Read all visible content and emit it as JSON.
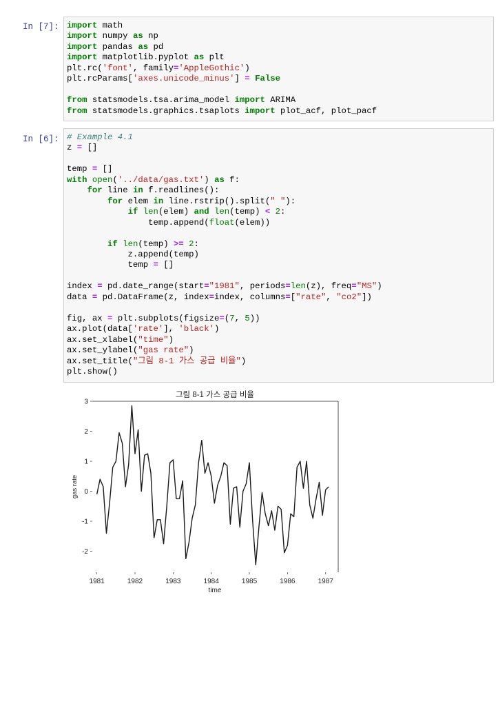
{
  "cells": [
    {
      "prompt": "In [7]:",
      "lines": [
        [
          [
            "kw",
            "import"
          ],
          [
            "nf",
            " math"
          ]
        ],
        [
          [
            "kw",
            "import"
          ],
          [
            "nf",
            " numpy "
          ],
          [
            "kw",
            "as"
          ],
          [
            "nf",
            " np"
          ]
        ],
        [
          [
            "kw",
            "import"
          ],
          [
            "nf",
            " pandas "
          ],
          [
            "kw",
            "as"
          ],
          [
            "nf",
            " pd"
          ]
        ],
        [
          [
            "kw",
            "import"
          ],
          [
            "nf",
            " matplotlib.pyplot "
          ],
          [
            "kw",
            "as"
          ],
          [
            "nf",
            " plt"
          ]
        ],
        [
          [
            "nf",
            "plt.rc("
          ],
          [
            "str",
            "'font'"
          ],
          [
            "nf",
            ", family"
          ],
          [
            "op",
            "="
          ],
          [
            "str",
            "'AppleGothic'"
          ],
          [
            "nf",
            ")"
          ]
        ],
        [
          [
            "nf",
            "plt.rcParams["
          ],
          [
            "str",
            "'axes.unicode_minus'"
          ],
          [
            "nf",
            "] "
          ],
          [
            "op",
            "="
          ],
          [
            "nf",
            " "
          ],
          [
            "kc",
            "False"
          ]
        ],
        [],
        [
          [
            "kw",
            "from"
          ],
          [
            "nf",
            " statsmodels.tsa.arima_model "
          ],
          [
            "kw",
            "import"
          ],
          [
            "nf",
            " ARIMA"
          ]
        ],
        [
          [
            "kw",
            "from"
          ],
          [
            "nf",
            " statsmodels.graphics.tsaplots "
          ],
          [
            "kw",
            "import"
          ],
          [
            "nf",
            " plot_acf, plot_pacf"
          ]
        ]
      ]
    },
    {
      "prompt": "In [6]:",
      "lines": [
        [
          [
            "cm",
            "# Example 4.1"
          ]
        ],
        [
          [
            "nf",
            "z "
          ],
          [
            "op",
            "="
          ],
          [
            "nf",
            " []"
          ]
        ],
        [],
        [
          [
            "nf",
            "temp "
          ],
          [
            "op",
            "="
          ],
          [
            "nf",
            " []"
          ]
        ],
        [
          [
            "kw",
            "with"
          ],
          [
            "nf",
            " "
          ],
          [
            "bi",
            "open"
          ],
          [
            "nf",
            "("
          ],
          [
            "str",
            "'../data/gas.txt'"
          ],
          [
            "nf",
            ") "
          ],
          [
            "kw",
            "as"
          ],
          [
            "nf",
            " f:"
          ]
        ],
        [
          [
            "nf",
            "    "
          ],
          [
            "kw",
            "for"
          ],
          [
            "nf",
            " line "
          ],
          [
            "kw",
            "in"
          ],
          [
            "nf",
            " f.readlines():"
          ]
        ],
        [
          [
            "nf",
            "        "
          ],
          [
            "kw",
            "for"
          ],
          [
            "nf",
            " elem "
          ],
          [
            "kw",
            "in"
          ],
          [
            "nf",
            " line.rstrip().split("
          ],
          [
            "str",
            "\" \""
          ],
          [
            "nf",
            "):"
          ]
        ],
        [
          [
            "nf",
            "            "
          ],
          [
            "kw",
            "if"
          ],
          [
            "nf",
            " "
          ],
          [
            "bi",
            "len"
          ],
          [
            "nf",
            "(elem) "
          ],
          [
            "kw",
            "and"
          ],
          [
            "nf",
            " "
          ],
          [
            "bi",
            "len"
          ],
          [
            "nf",
            "(temp) "
          ],
          [
            "op",
            "<"
          ],
          [
            "nf",
            " "
          ],
          [
            "num",
            "2"
          ],
          [
            "nf",
            ":"
          ]
        ],
        [
          [
            "nf",
            "                temp.append("
          ],
          [
            "bi",
            "float"
          ],
          [
            "nf",
            "(elem))"
          ]
        ],
        [],
        [
          [
            "nf",
            "        "
          ],
          [
            "kw",
            "if"
          ],
          [
            "nf",
            " "
          ],
          [
            "bi",
            "len"
          ],
          [
            "nf",
            "(temp) "
          ],
          [
            "op",
            ">="
          ],
          [
            "nf",
            " "
          ],
          [
            "num",
            "2"
          ],
          [
            "nf",
            ":"
          ]
        ],
        [
          [
            "nf",
            "            z.append(temp)"
          ]
        ],
        [
          [
            "nf",
            "            temp "
          ],
          [
            "op",
            "="
          ],
          [
            "nf",
            " []"
          ]
        ],
        [],
        [
          [
            "nf",
            "index "
          ],
          [
            "op",
            "="
          ],
          [
            "nf",
            " pd.date_range(start"
          ],
          [
            "op",
            "="
          ],
          [
            "str",
            "\"1981\""
          ],
          [
            "nf",
            ", periods"
          ],
          [
            "op",
            "="
          ],
          [
            "bi",
            "len"
          ],
          [
            "nf",
            "(z), freq"
          ],
          [
            "op",
            "="
          ],
          [
            "str",
            "\"MS\""
          ],
          [
            "nf",
            ")"
          ]
        ],
        [
          [
            "nf",
            "data "
          ],
          [
            "op",
            "="
          ],
          [
            "nf",
            " pd.DataFrame(z, index"
          ],
          [
            "op",
            "="
          ],
          [
            "nf",
            "index, columns"
          ],
          [
            "op",
            "="
          ],
          [
            "nf",
            "["
          ],
          [
            "str",
            "\"rate\""
          ],
          [
            "nf",
            ", "
          ],
          [
            "str",
            "\"co2\""
          ],
          [
            "nf",
            "])"
          ]
        ],
        [],
        [
          [
            "nf",
            "fig, ax "
          ],
          [
            "op",
            "="
          ],
          [
            "nf",
            " plt.subplots(figsize"
          ],
          [
            "op",
            "="
          ],
          [
            "nf",
            "("
          ],
          [
            "num",
            "7"
          ],
          [
            "nf",
            ", "
          ],
          [
            "num",
            "5"
          ],
          [
            "nf",
            "))"
          ]
        ],
        [
          [
            "nf",
            "ax.plot(data["
          ],
          [
            "str",
            "'rate'"
          ],
          [
            "nf",
            "], "
          ],
          [
            "str",
            "'black'"
          ],
          [
            "nf",
            ")"
          ]
        ],
        [
          [
            "nf",
            "ax.set_xlabel("
          ],
          [
            "str",
            "\"time\""
          ],
          [
            "nf",
            ")"
          ]
        ],
        [
          [
            "nf",
            "ax.set_ylabel("
          ],
          [
            "str",
            "\"gas rate\""
          ],
          [
            "nf",
            ")"
          ]
        ],
        [
          [
            "nf",
            "ax.set_title("
          ],
          [
            "str",
            "\"그림 8-1 가스 공급 비율\""
          ],
          [
            "nf",
            ")"
          ]
        ],
        [
          [
            "nf",
            "plt.show()"
          ]
        ]
      ]
    }
  ],
  "chart_data": {
    "type": "line",
    "title": "그림 8-1 가스 공급 비율",
    "xlabel": "time",
    "ylabel": "gas rate",
    "xlim": [
      1980.88,
      1987.33
    ],
    "ylim": [
      -2.7,
      3.0
    ],
    "yticks": [
      3,
      2,
      1,
      0,
      -1,
      -2
    ],
    "ytick_labels": [
      "3",
      "2",
      "1",
      "0",
      "-1",
      "-2"
    ],
    "xticks": [
      1981,
      1982,
      1983,
      1984,
      1985,
      1986,
      1987
    ],
    "xtick_labels": [
      "1981",
      "1982",
      "1983",
      "1984",
      "1985",
      "1986",
      "1987"
    ],
    "line_color": "#1a1a1a",
    "series": [
      {
        "values": [
          -0.1,
          0.4,
          0.15,
          -1.4,
          -0.4,
          0.8,
          1.0,
          1.95,
          1.6,
          0.15,
          0.9,
          2.85,
          1.25,
          2.05,
          0.0,
          1.2,
          1.25,
          0.6,
          -1.55,
          -0.95,
          -0.95,
          -1.75,
          -0.5,
          0.95,
          1.05,
          -0.25,
          -0.25,
          0.35,
          -2.25,
          -1.7,
          -0.9,
          -0.45,
          0.95,
          1.7,
          0.6,
          0.95,
          0.5,
          -0.4,
          0.2,
          0.5,
          0.95,
          0.85,
          -1.1,
          0.1,
          0.15,
          -1.2,
          0.0,
          0.25,
          0.95,
          -0.95,
          -2.45,
          -1.2,
          -0.05,
          -0.75,
          -1.15,
          -0.65,
          -1.3,
          -0.5,
          -0.6,
          -2.05,
          -1.8,
          -0.75,
          -0.85,
          0.8,
          1.0,
          0.1,
          1.0,
          -0.45,
          -0.9,
          -0.25,
          0.3,
          -0.8,
          0.05,
          0.15
        ]
      }
    ]
  }
}
